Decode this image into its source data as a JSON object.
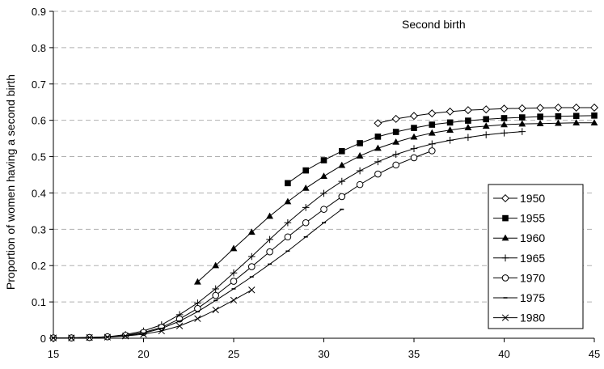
{
  "chart_data": {
    "type": "line",
    "title": "",
    "annotation": "Second birth",
    "xlabel": "",
    "ylabel": "Proportion of women having a second birth",
    "xlim": [
      15,
      45
    ],
    "ylim": [
      0,
      0.9
    ],
    "x_ticks": [
      15,
      20,
      25,
      30,
      35,
      40,
      45
    ],
    "y_ticks": [
      0,
      0.1,
      0.2,
      0.3,
      0.4,
      0.5,
      0.6,
      0.7,
      0.8,
      0.9
    ],
    "x_tick_labels": [
      "15",
      "20",
      "25",
      "30",
      "35",
      "40",
      "45"
    ],
    "y_tick_labels": [
      "0",
      "0.1",
      "0.2",
      "0.3",
      "0.4",
      "0.5",
      "0.6",
      "0.7",
      "0.8",
      "0.9"
    ],
    "grid": "horizontal dashed",
    "legend_position": "right",
    "series": [
      {
        "name": "1950",
        "marker": "diamond-open",
        "points": [
          [
            33,
            0.592
          ],
          [
            34,
            0.604
          ],
          [
            35,
            0.612
          ],
          [
            36,
            0.619
          ],
          [
            37,
            0.624
          ],
          [
            38,
            0.628
          ],
          [
            39,
            0.63
          ],
          [
            40,
            0.632
          ],
          [
            41,
            0.633
          ],
          [
            42,
            0.634
          ],
          [
            43,
            0.635
          ],
          [
            44,
            0.635
          ],
          [
            45,
            0.635
          ]
        ]
      },
      {
        "name": "1955",
        "marker": "square-filled",
        "points": [
          [
            28,
            0.427
          ],
          [
            29,
            0.462
          ],
          [
            30,
            0.49
          ],
          [
            31,
            0.515
          ],
          [
            32,
            0.537
          ],
          [
            33,
            0.555
          ],
          [
            34,
            0.568
          ],
          [
            35,
            0.579
          ],
          [
            36,
            0.588
          ],
          [
            37,
            0.594
          ],
          [
            38,
            0.599
          ],
          [
            39,
            0.603
          ],
          [
            40,
            0.606
          ],
          [
            41,
            0.608
          ],
          [
            42,
            0.61
          ],
          [
            43,
            0.611
          ],
          [
            44,
            0.612
          ],
          [
            45,
            0.613
          ]
        ]
      },
      {
        "name": "1960",
        "marker": "triangle-filled",
        "points": [
          [
            23,
            0.155
          ],
          [
            24,
            0.2
          ],
          [
            25,
            0.247
          ],
          [
            26,
            0.292
          ],
          [
            27,
            0.336
          ],
          [
            28,
            0.376
          ],
          [
            29,
            0.413
          ],
          [
            30,
            0.446
          ],
          [
            31,
            0.476
          ],
          [
            32,
            0.502
          ],
          [
            33,
            0.523
          ],
          [
            34,
            0.54
          ],
          [
            35,
            0.554
          ],
          [
            36,
            0.565
          ],
          [
            37,
            0.573
          ],
          [
            38,
            0.58
          ],
          [
            39,
            0.584
          ],
          [
            40,
            0.588
          ],
          [
            41,
            0.59
          ],
          [
            42,
            0.591
          ],
          [
            43,
            0.592
          ],
          [
            44,
            0.593
          ],
          [
            45,
            0.593
          ]
        ]
      },
      {
        "name": "1965",
        "marker": "plus",
        "points": [
          [
            15,
            0.001
          ],
          [
            16,
            0.001
          ],
          [
            17,
            0.002
          ],
          [
            18,
            0.004
          ],
          [
            19,
            0.01
          ],
          [
            20,
            0.02
          ],
          [
            21,
            0.037
          ],
          [
            22,
            0.065
          ],
          [
            23,
            0.097
          ],
          [
            24,
            0.136
          ],
          [
            25,
            0.18
          ],
          [
            26,
            0.225
          ],
          [
            27,
            0.272
          ],
          [
            28,
            0.318
          ],
          [
            29,
            0.36
          ],
          [
            30,
            0.399
          ],
          [
            31,
            0.432
          ],
          [
            32,
            0.461
          ],
          [
            33,
            0.486
          ],
          [
            34,
            0.506
          ],
          [
            35,
            0.522
          ],
          [
            36,
            0.535
          ],
          [
            37,
            0.545
          ],
          [
            38,
            0.553
          ],
          [
            39,
            0.56
          ],
          [
            40,
            0.565
          ],
          [
            41,
            0.569
          ]
        ]
      },
      {
        "name": "1970",
        "marker": "circle-open",
        "points": [
          [
            15,
            0.001
          ],
          [
            16,
            0.001
          ],
          [
            17,
            0.002
          ],
          [
            18,
            0.004
          ],
          [
            19,
            0.008
          ],
          [
            20,
            0.016
          ],
          [
            21,
            0.03
          ],
          [
            22,
            0.053
          ],
          [
            23,
            0.082
          ],
          [
            24,
            0.118
          ],
          [
            25,
            0.157
          ],
          [
            26,
            0.197
          ],
          [
            27,
            0.238
          ],
          [
            28,
            0.279
          ],
          [
            29,
            0.318
          ],
          [
            30,
            0.355
          ],
          [
            31,
            0.39
          ],
          [
            32,
            0.423
          ],
          [
            33,
            0.452
          ],
          [
            34,
            0.477
          ],
          [
            35,
            0.497
          ],
          [
            36,
            0.516
          ]
        ]
      },
      {
        "name": "1975",
        "marker": "dash",
        "points": [
          [
            15,
            0.001
          ],
          [
            16,
            0.001
          ],
          [
            17,
            0.002
          ],
          [
            18,
            0.004
          ],
          [
            19,
            0.007
          ],
          [
            20,
            0.014
          ],
          [
            21,
            0.027
          ],
          [
            22,
            0.047
          ],
          [
            23,
            0.073
          ],
          [
            24,
            0.104
          ],
          [
            25,
            0.136
          ],
          [
            26,
            0.169
          ],
          [
            27,
            0.204
          ],
          [
            28,
            0.24
          ],
          [
            29,
            0.279
          ],
          [
            30,
            0.318
          ],
          [
            31,
            0.355
          ]
        ]
      },
      {
        "name": "1980",
        "marker": "cross",
        "points": [
          [
            15,
            0.001
          ],
          [
            16,
            0.001
          ],
          [
            17,
            0.002
          ],
          [
            18,
            0.003
          ],
          [
            19,
            0.006
          ],
          [
            20,
            0.011
          ],
          [
            21,
            0.02
          ],
          [
            22,
            0.034
          ],
          [
            23,
            0.054
          ],
          [
            24,
            0.078
          ],
          [
            25,
            0.105
          ],
          [
            26,
            0.133
          ]
        ]
      }
    ]
  }
}
